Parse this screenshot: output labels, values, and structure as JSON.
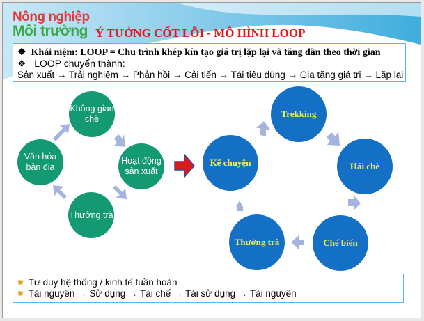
{
  "header": {
    "logo_line1": "Nông nghiệp",
    "logo_line2": "Môi trường",
    "title": "Ý TƯỞNG CỐT LÕI - MÔ HÌNH LOOP"
  },
  "concept": {
    "bullet_icon": "diamond-bullet",
    "line1": "Khái niệm: LOOP = Chu trình khép kín tạo giá trị lặp lại và tăng dần theo thời gian",
    "line2": "LOOP chuyển thành:",
    "line3": "Sản xuất → Trải nghiệm → Phản hồi → Cải tiến → Tái tiêu dùng → Gia tăng giá trị → Lặp lại"
  },
  "left_cycle": {
    "color": "#139a73",
    "nodes": [
      "Không gian chè",
      "Hoạt động sản xuất",
      "Thưởng trà",
      "Văn hóa bản địa"
    ]
  },
  "transition_arrow": {
    "color": "#e01818"
  },
  "right_cycle": {
    "color": "#1470c4",
    "text_color": "#f2f24a",
    "nodes": [
      "Trekking",
      "Hái chè",
      "Chế biến",
      "Thưởng trà",
      "Kể chuyện"
    ]
  },
  "summary": {
    "bullet_icon": "pointing-hand",
    "line1": "Tư duy hệ thống / kinh tế tuần hoàn",
    "line2": "Tài nguyên → Sử dụng → Tái chế → Tái sử dụng → Tài nguyên"
  }
}
